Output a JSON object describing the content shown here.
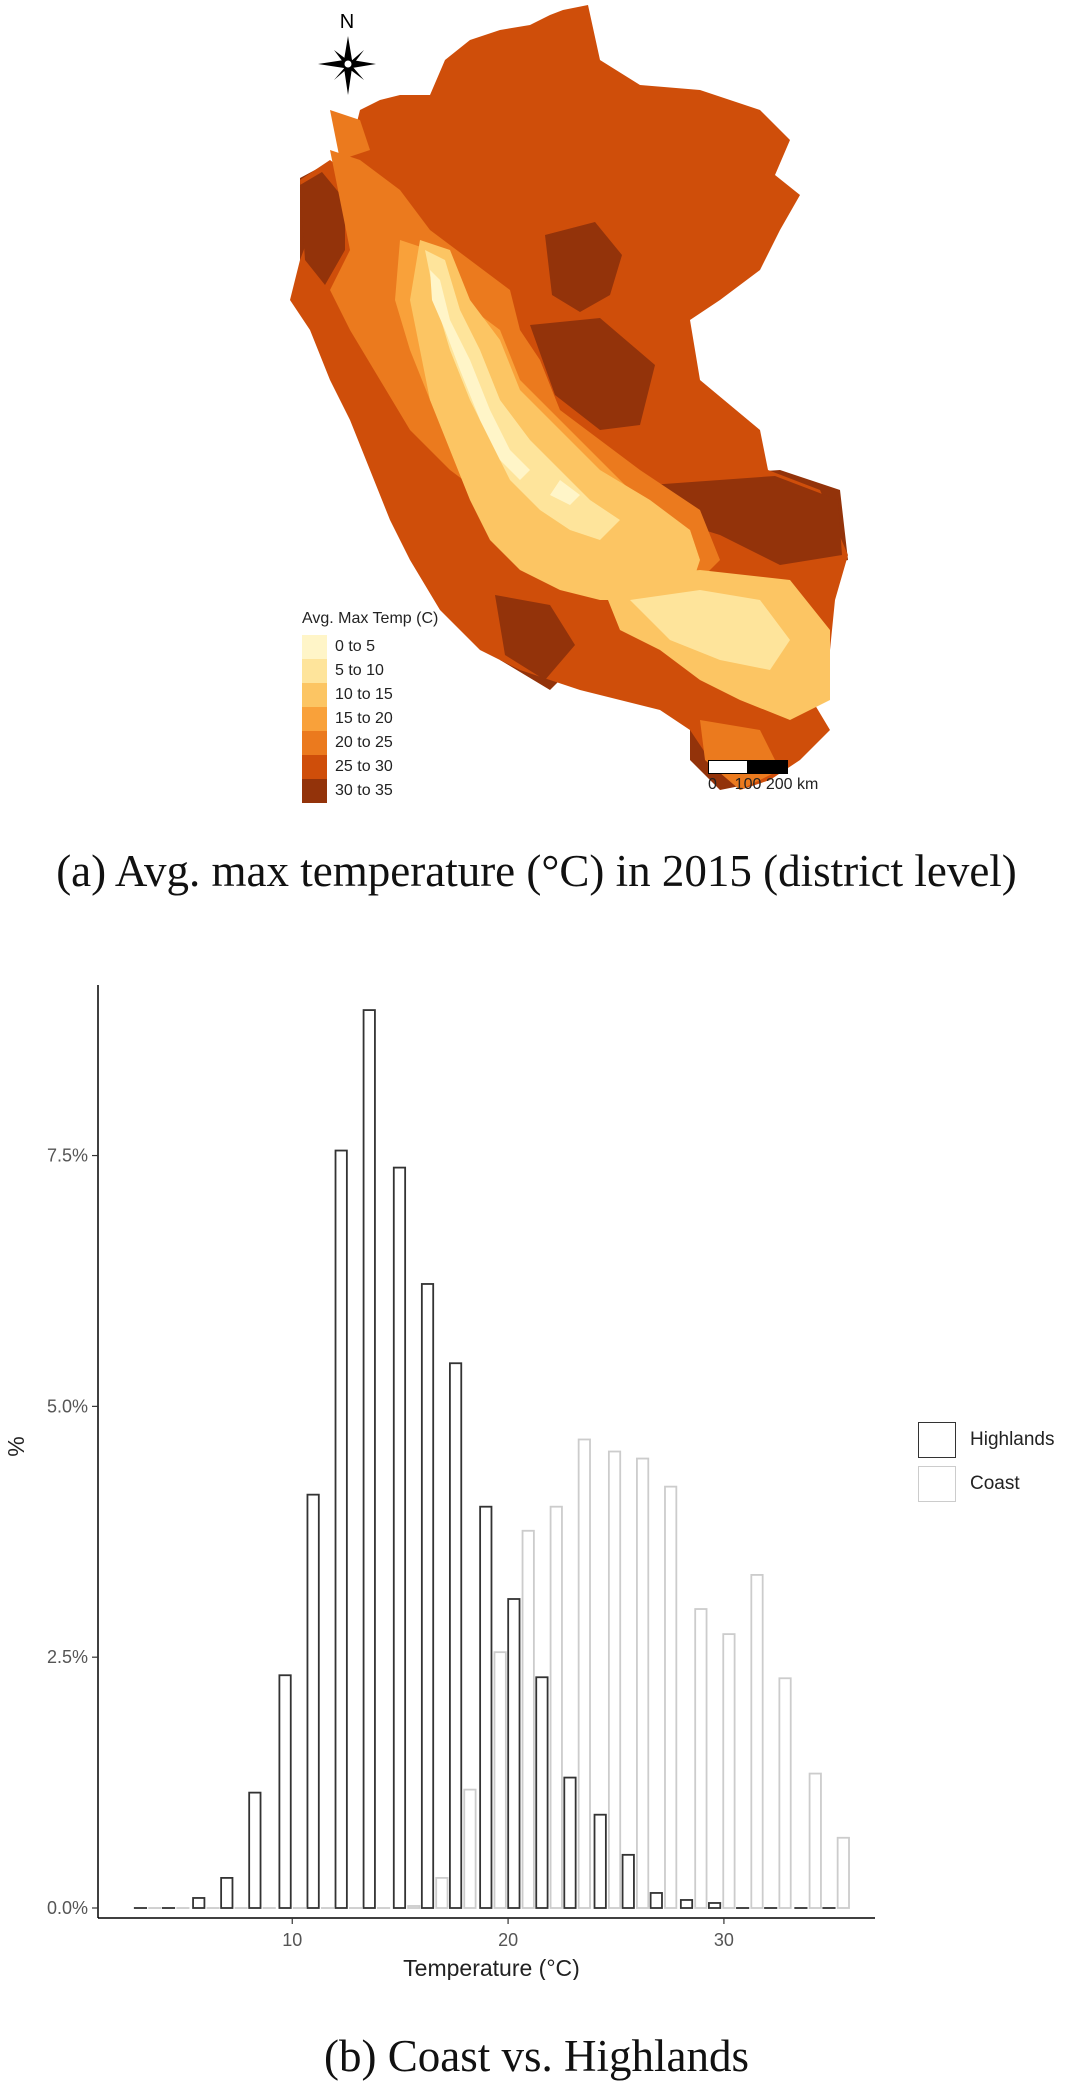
{
  "map": {
    "north_label": "N",
    "legend": {
      "title": "Avg. Max Temp (C)",
      "items": [
        {
          "label": "0 to 5",
          "color": "#FFF5C8"
        },
        {
          "label": "5 to 10",
          "color": "#FEE49B"
        },
        {
          "label": "10 to 15",
          "color": "#FCC563"
        },
        {
          "label": "15 to 20",
          "color": "#F9A13A"
        },
        {
          "label": "20 to 25",
          "color": "#EB7A1E"
        },
        {
          "label": "25 to 30",
          "color": "#CF4E0A"
        },
        {
          "label": "30 to 35",
          "color": "#93330A"
        }
      ]
    },
    "scalebar": {
      "labels": "0    100 200 km"
    }
  },
  "captions": {
    "a": "(a) Avg. max temperature (°C) in 2015 (district level)",
    "b": "(b) Coast vs. Highlands"
  },
  "chart_data": {
    "type": "bar",
    "xlabel": "Temperature (°C)",
    "ylabel": "%",
    "xlim": [
      1,
      37
    ],
    "ylim": [
      0,
      9.2
    ],
    "x_ticks": [
      10,
      20,
      30
    ],
    "x_tick_labels": [
      "10",
      "20",
      "30"
    ],
    "y_ticks": [
      0,
      2.5,
      5.0,
      7.5
    ],
    "y_tick_labels": [
      "0.0%",
      "2.5%",
      "5.0%",
      "7.5%"
    ],
    "bin_width": 1.33,
    "bin_centers": [
      3.3,
      4.6,
      6.0,
      7.3,
      8.6,
      10.0,
      11.3,
      12.6,
      13.9,
      15.3,
      16.6,
      17.9,
      19.3,
      20.6,
      21.9,
      23.2,
      24.6,
      25.9,
      27.2,
      28.6,
      29.9,
      31.2,
      32.5,
      33.9,
      35.2
    ],
    "legend_position": "right",
    "series": [
      {
        "name": "Highlands",
        "color": "#333333",
        "values": [
          0.0,
          0.0,
          0.1,
          0.3,
          1.15,
          2.32,
          4.12,
          7.55,
          8.95,
          7.38,
          6.22,
          5.43,
          4.0,
          3.08,
          2.3,
          1.3,
          0.93,
          0.53,
          0.15,
          0.08,
          0.05,
          0.0,
          0.0,
          0.0,
          0.0
        ]
      },
      {
        "name": "Coast",
        "color": "#cccccc",
        "values": [
          0.0,
          0.0,
          0.0,
          0.0,
          0.0,
          0.0,
          0.0,
          0.0,
          0.0,
          0.02,
          0.3,
          1.18,
          2.55,
          3.76,
          4.0,
          4.67,
          4.55,
          4.48,
          4.2,
          2.98,
          2.73,
          3.32,
          2.29,
          1.34,
          0.7
        ]
      }
    ]
  }
}
